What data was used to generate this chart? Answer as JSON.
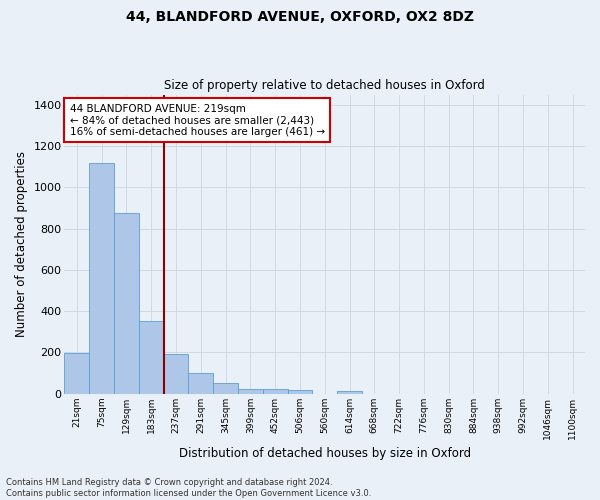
{
  "title1": "44, BLANDFORD AVENUE, OXFORD, OX2 8DZ",
  "title2": "Size of property relative to detached houses in Oxford",
  "xlabel": "Distribution of detached houses by size in Oxford",
  "ylabel": "Number of detached properties",
  "categories": [
    "21sqm",
    "75sqm",
    "129sqm",
    "183sqm",
    "237sqm",
    "291sqm",
    "345sqm",
    "399sqm",
    "452sqm",
    "506sqm",
    "560sqm",
    "614sqm",
    "668sqm",
    "722sqm",
    "776sqm",
    "830sqm",
    "884sqm",
    "938sqm",
    "992sqm",
    "1046sqm",
    "1100sqm"
  ],
  "values": [
    197,
    1120,
    877,
    352,
    191,
    100,
    53,
    24,
    22,
    17,
    0,
    14,
    0,
    0,
    0,
    0,
    0,
    0,
    0,
    0,
    0
  ],
  "bar_color": "#aec6e8",
  "bar_edge_color": "#5a9fd4",
  "grid_color": "#d0d8e8",
  "background_color": "#eaf0f8",
  "vline_index": 3.5,
  "vline_color": "#8b0000",
  "annotation_text": "44 BLANDFORD AVENUE: 219sqm\n← 84% of detached houses are smaller (2,443)\n16% of semi-detached houses are larger (461) →",
  "annotation_box_color": "white",
  "annotation_box_edge": "#cc0000",
  "ylim": [
    0,
    1450
  ],
  "yticks": [
    0,
    200,
    400,
    600,
    800,
    1000,
    1200,
    1400
  ],
  "footer": "Contains HM Land Registry data © Crown copyright and database right 2024.\nContains public sector information licensed under the Open Government Licence v3.0."
}
